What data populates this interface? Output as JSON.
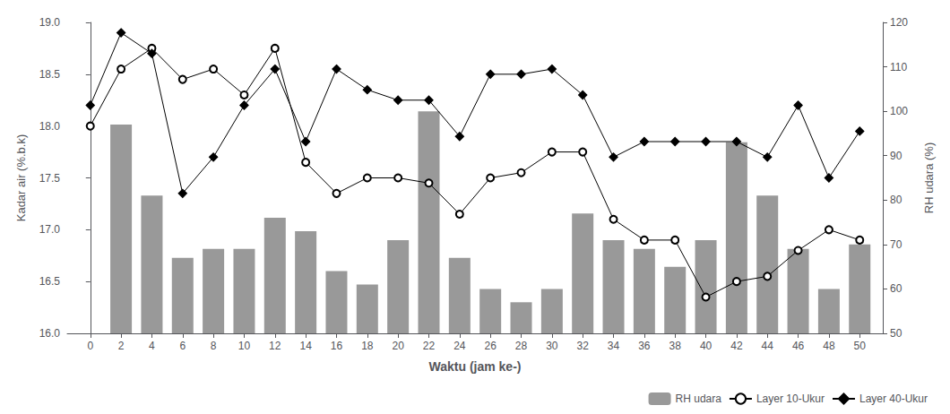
{
  "chart_data": {
    "type": "bar",
    "xlabel": "Waktu (jam ke-)",
    "ylabel": "Kadar air (%.b.k)",
    "y2label": "RH udara (%)",
    "x": [
      0,
      2,
      4,
      6,
      8,
      10,
      12,
      14,
      16,
      18,
      20,
      22,
      24,
      26,
      28,
      30,
      32,
      34,
      36,
      38,
      40,
      42,
      44,
      46,
      48,
      50
    ],
    "xlim": [
      -1.5,
      51.5
    ],
    "xticks": [
      0,
      2,
      4,
      6,
      8,
      10,
      12,
      14,
      16,
      18,
      20,
      22,
      24,
      26,
      28,
      30,
      32,
      34,
      36,
      38,
      40,
      42,
      44,
      46,
      48,
      50
    ],
    "ylim": [
      16.0,
      19.0
    ],
    "yticks": [
      {
        "value": 16.0,
        "label": "16.0"
      },
      16.5,
      {
        "value": 17.0,
        "label": "17.0"
      },
      17.5,
      {
        "value": 18.0,
        "label": "18.0"
      },
      18.5,
      {
        "value": 19.0,
        "label": "19.0"
      }
    ],
    "y2lim": [
      50,
      120
    ],
    "y2ticks": [
      50,
      60,
      70,
      80,
      90,
      100,
      110,
      120
    ],
    "grid": false,
    "legend": "lower right",
    "series": [
      {
        "name": "RH udara",
        "type": "bar",
        "axis": "y2",
        "color": "#999999",
        "values": [
          50,
          97,
          81,
          67,
          69,
          69,
          76,
          73,
          64,
          61,
          71,
          100,
          67,
          60,
          57,
          60,
          77,
          71,
          69,
          65,
          71,
          93,
          81,
          69,
          60,
          70
        ]
      },
      {
        "name": "Layer 10-Ukur",
        "type": "line",
        "color": "#000000",
        "marker": "circle",
        "values": [
          18.0,
          18.55,
          18.75,
          18.45,
          18.55,
          18.3,
          18.75,
          17.65,
          17.35,
          17.5,
          17.5,
          17.45,
          17.15,
          17.5,
          17.55,
          17.75,
          17.75,
          17.1,
          16.9,
          16.9,
          16.35,
          16.5,
          16.55,
          16.8,
          17.0,
          16.9
        ]
      },
      {
        "name": "Layer 40-Ukur",
        "type": "line",
        "color": "#000000",
        "marker": "diamond",
        "values": [
          18.2,
          18.9,
          18.7,
          17.35,
          17.7,
          18.2,
          18.55,
          17.85,
          18.55,
          18.35,
          18.25,
          18.25,
          17.9,
          18.5,
          18.5,
          18.55,
          18.3,
          17.7,
          17.85,
          17.85,
          17.85,
          17.85,
          17.7,
          18.2,
          17.5,
          17.95
        ]
      }
    ]
  }
}
